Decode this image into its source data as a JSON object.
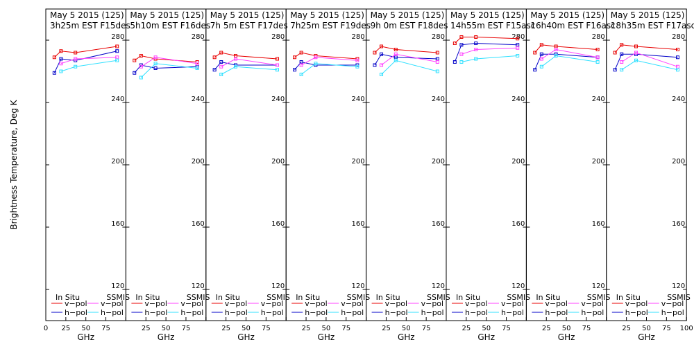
{
  "figure": {
    "ylabel": "Brightness Temperature, Deg K",
    "xlabel": "GHz",
    "colors": {
      "insitu_v": "#e80000",
      "insitu_h": "#0000c8",
      "ssmis_v": "#ff40ff",
      "ssmis_h": "#30e0ff"
    },
    "legend": {
      "insitu_title": "In Situ",
      "ssmis_title": "SSMIS",
      "v_label": "v−pol",
      "h_label": "h−pol"
    }
  },
  "chart_data": [
    {
      "type": "line",
      "title_line1": "May 5 2015 (125)",
      "title_line2": "3h25m  EST F15des",
      "xlim": [
        0,
        100
      ],
      "ylim": [
        100,
        300
      ],
      "x_ticks": [
        "0",
        "25",
        "50",
        "75",
        "100"
      ],
      "y_ticks": [
        "120",
        "160",
        "200",
        "240",
        "280"
      ],
      "frequencies_ghz": [
        10.7,
        19,
        37,
        89
      ],
      "series": [
        {
          "name": "In Situ v-pol",
          "x": [
            10.7,
            19,
            37,
            89
          ],
          "values": [
            269,
            273,
            272,
            276
          ]
        },
        {
          "name": "In Situ h-pol",
          "x": [
            10.7,
            19,
            37,
            89
          ],
          "values": [
            259,
            268,
            267,
            273
          ]
        },
        {
          "name": "SSMIS v-pol",
          "x": [
            19,
            37,
            89
          ],
          "values": [
            265,
            268,
            269
          ]
        },
        {
          "name": "SSMIS h-pol",
          "x": [
            19,
            37,
            89
          ],
          "values": [
            260,
            263,
            267
          ]
        }
      ]
    },
    {
      "type": "line",
      "title_line1": "May 5 2015 (125)",
      "title_line2": "5h10m  EST F16des",
      "xlim": [
        0,
        100
      ],
      "ylim": [
        100,
        300
      ],
      "x_ticks": [
        "0",
        "25",
        "50",
        "75",
        "100"
      ],
      "y_ticks": [
        "120",
        "160",
        "200",
        "240",
        "280"
      ],
      "frequencies_ghz": [
        10.7,
        19,
        37,
        89
      ],
      "series": [
        {
          "name": "In Situ v-pol",
          "x": [
            10.7,
            19,
            37,
            89
          ],
          "values": [
            267,
            270,
            268,
            266
          ]
        },
        {
          "name": "In Situ h-pol",
          "x": [
            10.7,
            19,
            37,
            89
          ],
          "values": [
            259,
            264,
            262,
            263
          ]
        },
        {
          "name": "SSMIS v-pol",
          "x": [
            19,
            37,
            89
          ],
          "values": [
            263,
            269,
            265
          ]
        },
        {
          "name": "SSMIS h-pol",
          "x": [
            19,
            37,
            89
          ],
          "values": [
            256,
            265,
            262
          ]
        }
      ]
    },
    {
      "type": "line",
      "title_line1": "May 5 2015 (125)",
      "title_line2": "7h 5m  EST F17des",
      "xlim": [
        0,
        100
      ],
      "ylim": [
        100,
        300
      ],
      "x_ticks": [
        "0",
        "25",
        "50",
        "75",
        "100"
      ],
      "y_ticks": [
        "120",
        "160",
        "200",
        "240",
        "280"
      ],
      "frequencies_ghz": [
        10.7,
        19,
        37,
        89
      ],
      "series": [
        {
          "name": "In Situ v-pol",
          "x": [
            10.7,
            19,
            37,
            89
          ],
          "values": [
            269,
            272,
            270,
            268
          ]
        },
        {
          "name": "In Situ h-pol",
          "x": [
            10.7,
            19,
            37,
            89
          ],
          "values": [
            261,
            266,
            264,
            264
          ]
        },
        {
          "name": "SSMIS v-pol",
          "x": [
            19,
            37,
            89
          ],
          "values": [
            263,
            268,
            264
          ]
        },
        {
          "name": "SSMIS h-pol",
          "x": [
            19,
            37,
            89
          ],
          "values": [
            258,
            263,
            261
          ]
        }
      ]
    },
    {
      "type": "line",
      "title_line1": "May 5 2015 (125)",
      "title_line2": "7h25m  EST F19des",
      "xlim": [
        0,
        100
      ],
      "ylim": [
        100,
        300
      ],
      "x_ticks": [
        "0",
        "25",
        "50",
        "75",
        "100"
      ],
      "y_ticks": [
        "120",
        "160",
        "200",
        "240",
        "280"
      ],
      "frequencies_ghz": [
        10.7,
        19,
        37,
        89
      ],
      "series": [
        {
          "name": "In Situ v-pol",
          "x": [
            10.7,
            19,
            37,
            89
          ],
          "values": [
            269,
            272,
            270,
            268
          ]
        },
        {
          "name": "In Situ h-pol",
          "x": [
            10.7,
            19,
            37,
            89
          ],
          "values": [
            261,
            266,
            264,
            264
          ]
        },
        {
          "name": "SSMIS v-pol",
          "x": [
            19,
            37,
            89
          ],
          "values": [
            264,
            269,
            267
          ]
        },
        {
          "name": "SSMIS h-pol",
          "x": [
            19,
            37,
            89
          ],
          "values": [
            258,
            265,
            263
          ]
        }
      ]
    },
    {
      "type": "line",
      "title_line1": "May 5 2015 (125)",
      "title_line2": "9h 0m  EST F18des",
      "xlim": [
        0,
        100
      ],
      "ylim": [
        100,
        300
      ],
      "x_ticks": [
        "0",
        "25",
        "50",
        "75",
        "100"
      ],
      "y_ticks": [
        "120",
        "160",
        "200",
        "240",
        "280"
      ],
      "frequencies_ghz": [
        10.7,
        19,
        37,
        89
      ],
      "series": [
        {
          "name": "In Situ v-pol",
          "x": [
            10.7,
            19,
            37,
            89
          ],
          "values": [
            272,
            276,
            274,
            272
          ]
        },
        {
          "name": "In Situ h-pol",
          "x": [
            10.7,
            19,
            37,
            89
          ],
          "values": [
            264,
            271,
            269,
            268
          ]
        },
        {
          "name": "SSMIS v-pol",
          "x": [
            19,
            37,
            89
          ],
          "values": [
            264,
            271,
            266
          ]
        },
        {
          "name": "SSMIS h-pol",
          "x": [
            19,
            37,
            89
          ],
          "values": [
            258,
            267,
            260
          ]
        }
      ]
    },
    {
      "type": "line",
      "title_line1": "May 5 2015 (125)",
      "title_line2": "14h55m  EST F15asc",
      "xlim": [
        0,
        100
      ],
      "ylim": [
        100,
        300
      ],
      "x_ticks": [
        "0",
        "25",
        "50",
        "75",
        "100"
      ],
      "y_ticks": [
        "120",
        "160",
        "200",
        "240",
        "280"
      ],
      "frequencies_ghz": [
        10.7,
        19,
        37,
        89
      ],
      "series": [
        {
          "name": "In Situ v-pol",
          "x": [
            10.7,
            19,
            37,
            89
          ],
          "values": [
            278,
            282,
            282,
            281
          ]
        },
        {
          "name": "In Situ h-pol",
          "x": [
            10.7,
            19,
            37,
            89
          ],
          "values": [
            266,
            277,
            278,
            277
          ]
        },
        {
          "name": "SSMIS v-pol",
          "x": [
            19,
            37,
            89
          ],
          "values": [
            271,
            274,
            275
          ]
        },
        {
          "name": "SSMIS h-pol",
          "x": [
            19,
            37,
            89
          ],
          "values": [
            266,
            268,
            270
          ]
        }
      ]
    },
    {
      "type": "line",
      "title_line1": "May 5 2015 (125)",
      "title_line2": "16h40m  EST F16asc",
      "xlim": [
        0,
        100
      ],
      "ylim": [
        100,
        300
      ],
      "x_ticks": [
        "0",
        "25",
        "50",
        "75",
        "100"
      ],
      "y_ticks": [
        "120",
        "160",
        "200",
        "240",
        "280"
      ],
      "frequencies_ghz": [
        10.7,
        19,
        37,
        89
      ],
      "series": [
        {
          "name": "In Situ v-pol",
          "x": [
            10.7,
            19,
            37,
            89
          ],
          "values": [
            272,
            277,
            276,
            274
          ]
        },
        {
          "name": "In Situ h-pol",
          "x": [
            10.7,
            19,
            37,
            89
          ],
          "values": [
            261,
            271,
            271,
            269
          ]
        },
        {
          "name": "SSMIS v-pol",
          "x": [
            19,
            37,
            89
          ],
          "values": [
            268,
            274,
            269
          ]
        },
        {
          "name": "SSMIS h-pol",
          "x": [
            19,
            37,
            89
          ],
          "values": [
            263,
            270,
            266
          ]
        }
      ]
    },
    {
      "type": "line",
      "title_line1": "May 5 2015 (125)",
      "title_line2": "18h35m  EST F17asc",
      "xlim": [
        0,
        100
      ],
      "ylim": [
        100,
        300
      ],
      "x_ticks": [
        "0",
        "25",
        "50",
        "75",
        "100"
      ],
      "y_ticks": [
        "120",
        "160",
        "200",
        "240",
        "280"
      ],
      "frequencies_ghz": [
        10.7,
        19,
        37,
        89
      ],
      "series": [
        {
          "name": "In Situ v-pol",
          "x": [
            10.7,
            19,
            37,
            89
          ],
          "values": [
            272,
            277,
            276,
            274
          ]
        },
        {
          "name": "In Situ h-pol",
          "x": [
            10.7,
            19,
            37,
            89
          ],
          "values": [
            261,
            271,
            271,
            269
          ]
        },
        {
          "name": "SSMIS v-pol",
          "x": [
            19,
            37,
            89
          ],
          "values": [
            266,
            272,
            263
          ]
        },
        {
          "name": "SSMIS h-pol",
          "x": [
            19,
            37,
            89
          ],
          "values": [
            261,
            267,
            261
          ]
        }
      ]
    }
  ]
}
